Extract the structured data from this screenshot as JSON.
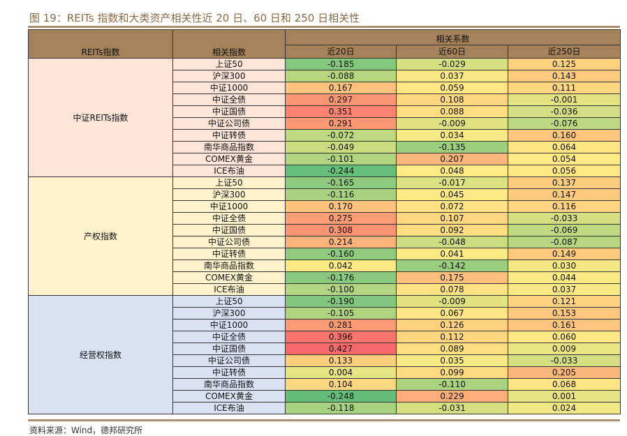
{
  "title": "图 19：REITs 指数和大类资产相关性近 20 日、60 日和 250 日相关性",
  "header": {
    "col1": "REITs指数",
    "col2": "相关指数",
    "group": "相关系数",
    "periods": [
      "近20日",
      "近60日",
      "近250日"
    ]
  },
  "source": "资料来源：Wind，德邦研究所",
  "colors": {
    "header": "#a6825a",
    "low": "#63be7b",
    "mid": "#ffeb84",
    "high": "#f8696b",
    "groups": [
      "#fce4d6",
      "#fff2cc",
      "#d9e1f2"
    ]
  },
  "chart_data": {
    "type": "heatmap",
    "title": "图 19：REITs 指数和大类资产相关性近 20 日、60 日和 250 日相关性",
    "columns": [
      "近20日",
      "近60日",
      "近250日"
    ],
    "groups": [
      {
        "name": "中证REITs指数",
        "rows": [
          {
            "index": "上证50",
            "values": [
              "-0.185",
              "-0.029",
              "0.125"
            ]
          },
          {
            "index": "沪深300",
            "values": [
              "-0.088",
              "0.037",
              "0.143"
            ]
          },
          {
            "index": "中证1000",
            "values": [
              "0.167",
              "0.059",
              "0.111"
            ]
          },
          {
            "index": "中证全债",
            "values": [
              "0.297",
              "0.108",
              "-0.001"
            ]
          },
          {
            "index": "中证国债",
            "values": [
              "0.351",
              "0.088",
              "-0.036"
            ]
          },
          {
            "index": "中证公司债",
            "values": [
              "0.291",
              "-0.009",
              "-0.076"
            ]
          },
          {
            "index": "中证转债",
            "values": [
              "-0.072",
              "0.034",
              "0.160"
            ]
          },
          {
            "index": "南华商品指数",
            "values": [
              "-0.049",
              "-0.135",
              "0.064"
            ]
          },
          {
            "index": "COMEX黄金",
            "values": [
              "-0.101",
              "0.207",
              "0.054"
            ]
          },
          {
            "index": "ICE布油",
            "values": [
              "-0.244",
              "0.048",
              "0.056"
            ]
          }
        ]
      },
      {
        "name": "产权指数",
        "rows": [
          {
            "index": "上证50",
            "values": [
              "-0.165",
              "-0.017",
              "0.137"
            ]
          },
          {
            "index": "沪深300",
            "values": [
              "-0.116",
              "0.045",
              "0.147"
            ]
          },
          {
            "index": "中证1000",
            "values": [
              "0.170",
              "0.072",
              "0.116"
            ]
          },
          {
            "index": "中证全债",
            "values": [
              "0.275",
              "0.107",
              "-0.033"
            ]
          },
          {
            "index": "中证国债",
            "values": [
              "0.308",
              "0.092",
              "-0.069"
            ]
          },
          {
            "index": "中证公司债",
            "values": [
              "0.214",
              "-0.048",
              "-0.087"
            ]
          },
          {
            "index": "中证转债",
            "values": [
              "-0.160",
              "0.041",
              "0.149"
            ]
          },
          {
            "index": "南华商品指数",
            "values": [
              "0.042",
              "-0.142",
              "0.030"
            ]
          },
          {
            "index": "COMEX黄金",
            "values": [
              "-0.176",
              "0.175",
              "0.044"
            ]
          },
          {
            "index": "ICE布油",
            "values": [
              "-0.100",
              "0.078",
              "0.037"
            ]
          }
        ]
      },
      {
        "name": "经营权指数",
        "rows": [
          {
            "index": "上证50",
            "values": [
              "-0.190",
              "-0.009",
              "0.121"
            ]
          },
          {
            "index": "沪深300",
            "values": [
              "-0.105",
              "0.067",
              "0.153"
            ]
          },
          {
            "index": "中证1000",
            "values": [
              "0.281",
              "0.126",
              "0.161"
            ]
          },
          {
            "index": "中证全债",
            "values": [
              "0.396",
              "0.112",
              "0.060"
            ]
          },
          {
            "index": "中证国债",
            "values": [
              "0.427",
              "0.089",
              "0.009"
            ]
          },
          {
            "index": "中证公司债",
            "values": [
              "0.133",
              "0.035",
              "-0.033"
            ]
          },
          {
            "index": "中证转债",
            "values": [
              "0.004",
              "0.099",
              "0.205"
            ]
          },
          {
            "index": "南华商品指数",
            "values": [
              "0.104",
              "-0.110",
              "0.068"
            ]
          },
          {
            "index": "COMEX黄金",
            "values": [
              "-0.248",
              "0.229",
              "0.001"
            ]
          },
          {
            "index": "ICE布油",
            "values": [
              "-0.118",
              "-0.031",
              "0.024"
            ]
          }
        ]
      }
    ]
  }
}
